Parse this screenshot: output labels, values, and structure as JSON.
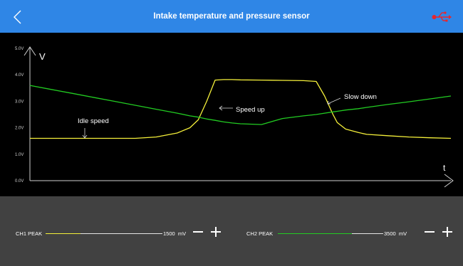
{
  "header": {
    "title": "Intake temperature and pressure sensor",
    "back_icon": "chevron-left-icon",
    "usb_icon": "usb-icon"
  },
  "chart_data": {
    "type": "line",
    "title": "",
    "xlabel": "t",
    "ylabel": "V",
    "ylim": [
      0,
      5
    ],
    "yticks": [
      "0.0V",
      "1.0V",
      "2.0V",
      "3.0V",
      "4.0V",
      "5.0V"
    ],
    "x": [
      0,
      5,
      10,
      15,
      20,
      25,
      30,
      35,
      38,
      40,
      42,
      44,
      46,
      48,
      50,
      55,
      60,
      65,
      68,
      70,
      72,
      73,
      75,
      78,
      80,
      85,
      90,
      95,
      100
    ],
    "series": [
      {
        "color": "#f5f03a",
        "values": [
          1.6,
          1.6,
          1.6,
          1.6,
          1.6,
          1.6,
          1.65,
          1.8,
          2.0,
          2.3,
          3.0,
          3.8,
          3.82,
          3.82,
          3.81,
          3.8,
          3.79,
          3.78,
          3.75,
          3.2,
          2.5,
          2.2,
          1.95,
          1.82,
          1.75,
          1.7,
          1.65,
          1.62,
          1.6
        ]
      },
      {
        "color": "#22cc22",
        "values": [
          3.6,
          3.45,
          3.3,
          3.15,
          3.0,
          2.85,
          2.7,
          2.55,
          2.45,
          2.4,
          2.33,
          2.28,
          2.22,
          2.18,
          2.15,
          2.12,
          2.35,
          2.45,
          2.5,
          2.55,
          2.6,
          2.62,
          2.67,
          2.72,
          2.77,
          2.88,
          2.98,
          3.09,
          3.2
        ]
      }
    ],
    "annotations": [
      {
        "text": "Idle speed"
      },
      {
        "text": "Speed up"
      },
      {
        "text": "Slow down"
      }
    ],
    "grid": false,
    "colors": {
      "ch1": "#f5f03a",
      "ch2": "#22cc22"
    }
  },
  "controls": {
    "ch1": {
      "label": "CH1 PEAK",
      "value": "1500",
      "unit": "mV",
      "minus_icon": "minus-icon",
      "plus_icon": "plus-icon",
      "level": 0.3
    },
    "ch2": {
      "label": "CH2 PEAK",
      "value": "3500",
      "unit": "mV",
      "minus_icon": "minus-icon",
      "plus_icon": "plus-icon",
      "level": 0.7
    }
  }
}
